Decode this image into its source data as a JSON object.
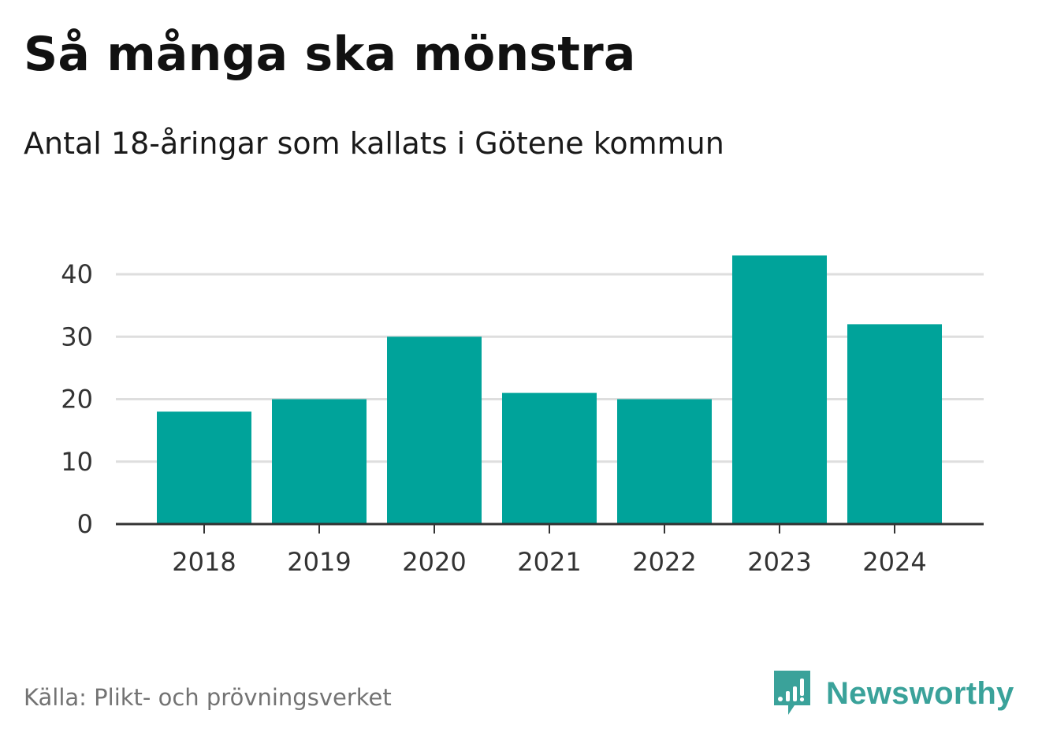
{
  "header": {
    "title": "Så många ska mönstra",
    "subtitle": "Antal 18-åringar som kallats i Götene kommun"
  },
  "footer": {
    "source": "Källa: Plikt- och prövningsverket",
    "brand": "Newsworthy",
    "brand_icon": "newsworthy-logo-icon"
  },
  "colors": {
    "bar": "#00a39a",
    "grid": "#dedede",
    "axis": "#333333",
    "tick_text": "#333333",
    "brand": "#3aa29a"
  },
  "chart_data": {
    "type": "bar",
    "title": "Så många ska mönstra",
    "subtitle": "Antal 18-åringar som kallats i Götene kommun",
    "xlabel": "",
    "ylabel": "",
    "categories": [
      "2018",
      "2019",
      "2020",
      "2021",
      "2022",
      "2023",
      "2024"
    ],
    "values": [
      18,
      20,
      30,
      21,
      20,
      43,
      32
    ],
    "ylim": [
      0,
      45
    ],
    "yticks": [
      0,
      10,
      20,
      30,
      40
    ],
    "grid": true,
    "legend": "none"
  }
}
